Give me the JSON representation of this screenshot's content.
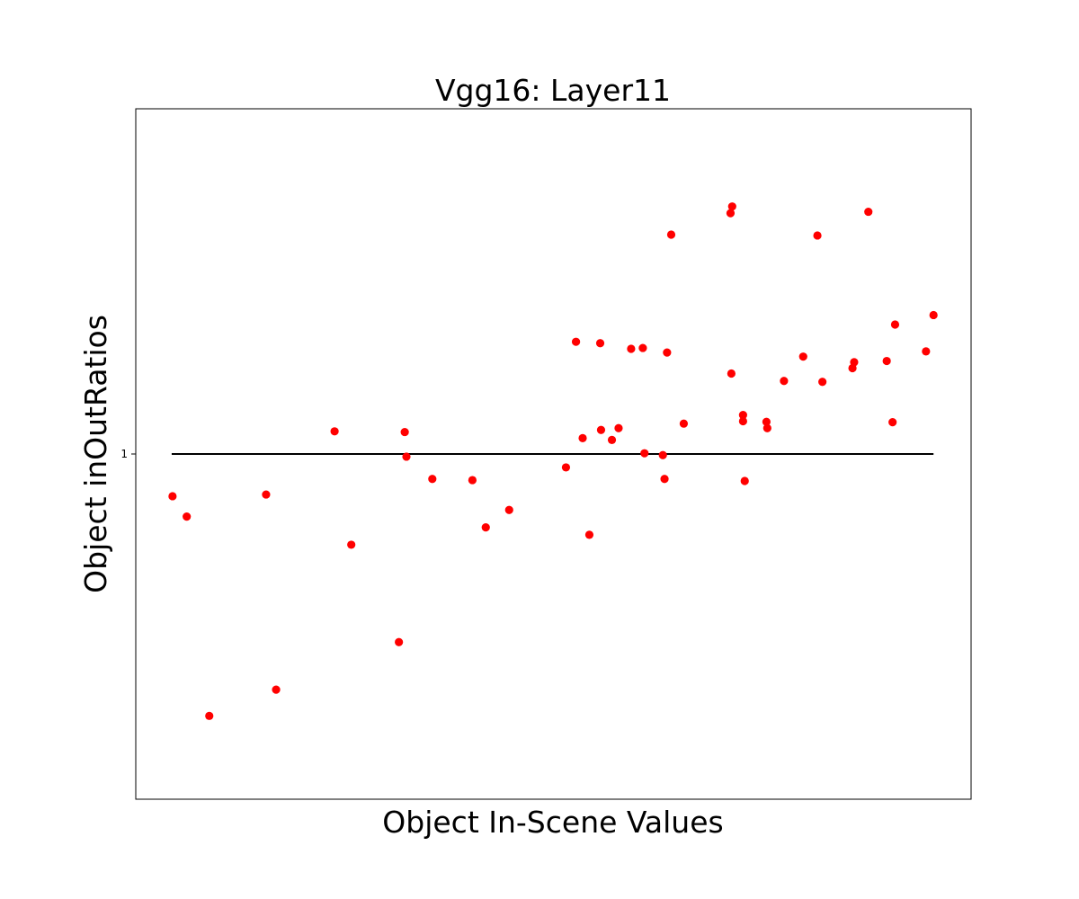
{
  "chart_data": {
    "type": "scatter",
    "title": "Vgg16: Layer11",
    "xlabel": "Object In-Scene Values",
    "ylabel": "Object inOutRatios",
    "y_scale": "log",
    "xlim": [
      0,
      100
    ],
    "ylim": [
      0.4,
      2.5
    ],
    "yticks": [
      {
        "value": 1,
        "label": "1"
      }
    ],
    "x_tick_labels_shown": false,
    "grid": false,
    "legend": "none",
    "reference_line": {
      "y": 1,
      "x_start": 4.3,
      "x_end": 95.5,
      "color": "#000000"
    },
    "marker_color": "#ff0000",
    "series": [
      {
        "points": [
          [
            4.4,
            0.894
          ],
          [
            6.1,
            0.847
          ],
          [
            8.8,
            0.499
          ],
          [
            15.6,
            0.898
          ],
          [
            16.8,
            0.535
          ],
          [
            23.8,
            1.062
          ],
          [
            25.8,
            0.786
          ],
          [
            31.5,
            0.607
          ],
          [
            32.2,
            1.06
          ],
          [
            32.4,
            0.993
          ],
          [
            35.5,
            0.936
          ],
          [
            40.3,
            0.933
          ],
          [
            41.9,
            0.823
          ],
          [
            44.7,
            0.862
          ],
          [
            51.5,
            0.965
          ],
          [
            52.7,
            1.347
          ],
          [
            53.5,
            1.043
          ],
          [
            54.3,
            0.807
          ],
          [
            55.6,
            1.342
          ],
          [
            55.7,
            1.066
          ],
          [
            57.0,
            1.038
          ],
          [
            57.8,
            1.071
          ],
          [
            59.3,
            1.322
          ],
          [
            60.7,
            1.325
          ],
          [
            60.9,
            1.002
          ],
          [
            63.1,
            0.997
          ],
          [
            63.3,
            0.936
          ],
          [
            63.6,
            1.309
          ],
          [
            64.1,
            1.79
          ],
          [
            65.6,
            1.084
          ],
          [
            71.2,
            1.895
          ],
          [
            71.3,
            1.238
          ],
          [
            71.4,
            1.929
          ],
          [
            72.7,
            1.109
          ],
          [
            72.7,
            1.091
          ],
          [
            72.9,
            0.931
          ],
          [
            75.5,
            1.089
          ],
          [
            75.6,
            1.071
          ],
          [
            77.6,
            1.214
          ],
          [
            79.9,
            1.295
          ],
          [
            81.6,
            1.786
          ],
          [
            82.2,
            1.211
          ],
          [
            85.8,
            1.256
          ],
          [
            86.0,
            1.276
          ],
          [
            87.7,
            1.902
          ],
          [
            89.9,
            1.28
          ],
          [
            90.6,
            1.088
          ],
          [
            90.9,
            1.41
          ],
          [
            94.6,
            1.313
          ],
          [
            95.5,
            1.446
          ]
        ]
      }
    ]
  }
}
